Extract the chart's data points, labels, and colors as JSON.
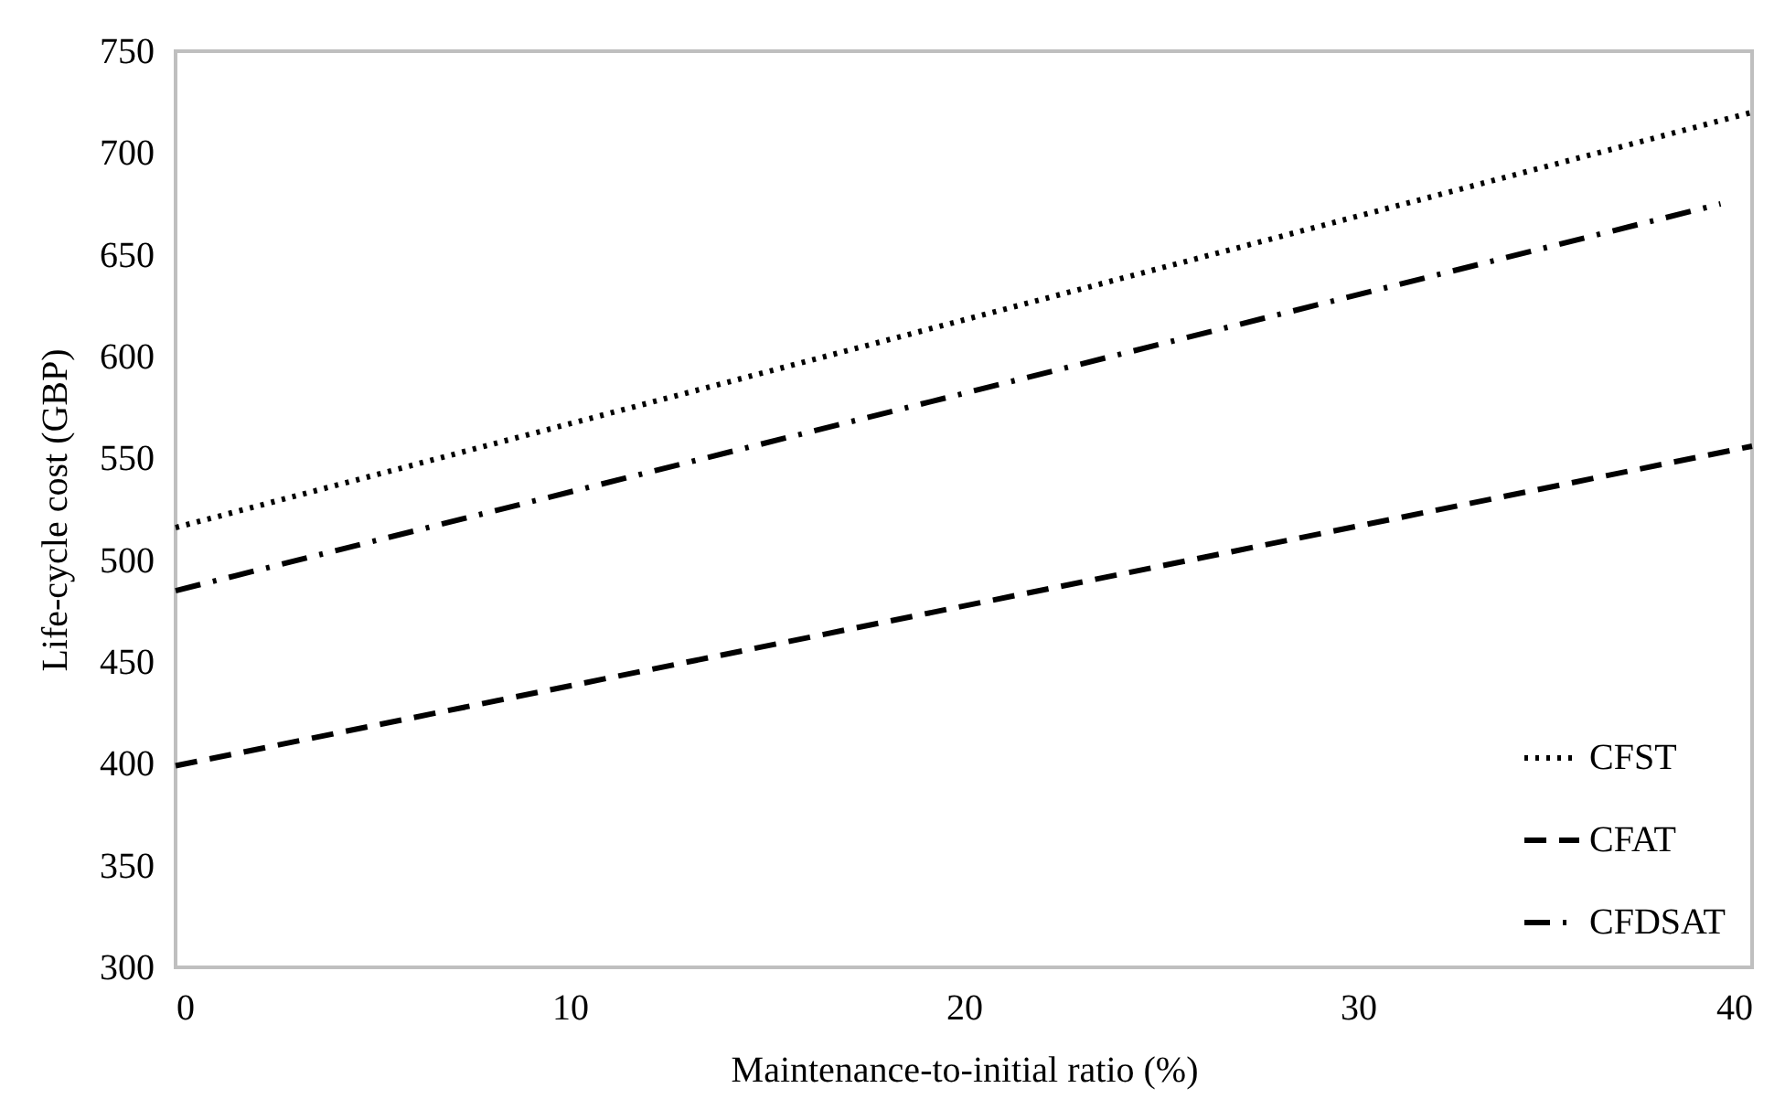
{
  "chart_data": {
    "type": "line",
    "xlabel": "Maintenance-to-initial ratio (%)",
    "ylabel": "Life-cycle cost (GBP)",
    "xlim": [
      0,
      40
    ],
    "xticks": [
      0,
      10,
      20,
      30,
      40
    ],
    "ylim": [
      300,
      750
    ],
    "yticks": [
      300,
      350,
      400,
      450,
      500,
      550,
      600,
      650,
      700,
      750
    ],
    "grid": false,
    "legend": "bottom right",
    "marker": "none",
    "series": [
      {
        "name": "CFST",
        "color": "#000000",
        "line_style": "dotted",
        "x": [
          0,
          40
        ],
        "values": [
          516,
          720
        ]
      },
      {
        "name": "CFAT",
        "color": "#000000",
        "line_style": "dashed",
        "x": [
          0,
          40
        ],
        "values": [
          399,
          556
        ]
      },
      {
        "name": "CFDSAT",
        "color": "#000000",
        "line_style": "dashdot",
        "x": [
          0,
          39.2
        ],
        "values": [
          485,
          675
        ]
      }
    ]
  }
}
